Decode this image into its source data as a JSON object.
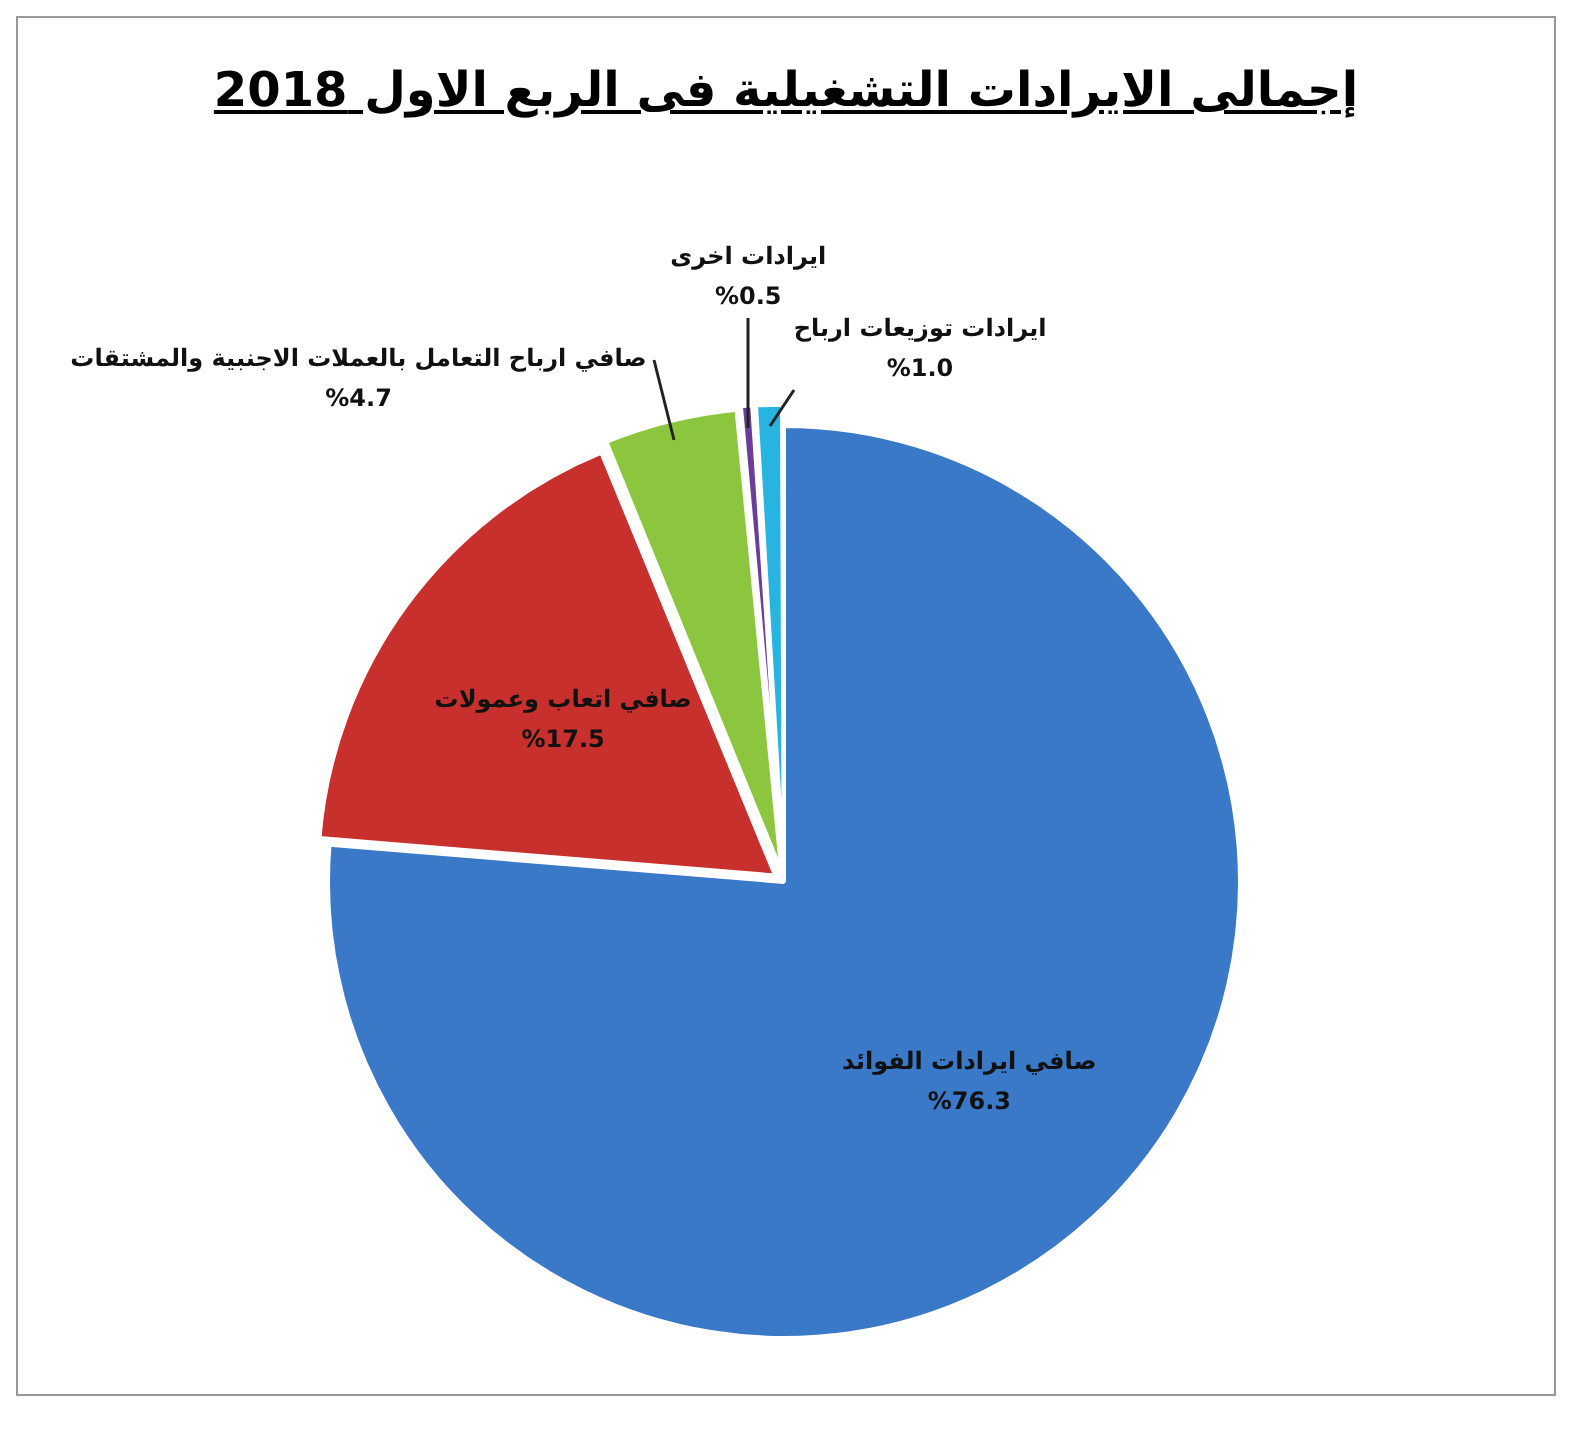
{
  "chart_data": {
    "type": "pie",
    "title": "إجمالى الايرادات التشغيلية فى الربع الاول 2018",
    "categories": [
      "صافي ايرادات الفوائد",
      "صافي اتعاب وعمولات",
      "صافي ارباح التعامل بالعملات الاجنبية والمشتقات",
      "ايرادات اخرى",
      "ايرادات توزيعات ارباح"
    ],
    "values": [
      76.3,
      17.5,
      4.7,
      0.5,
      1.0
    ],
    "value_labels": [
      "%76.3",
      "%17.5",
      "%4.7",
      "%0.5",
      "%1.0"
    ],
    "colors": [
      "#3a78c8",
      "#c8302e",
      "#8cc63e",
      "#6a3d9a",
      "#28b4e0"
    ],
    "legend": false
  }
}
